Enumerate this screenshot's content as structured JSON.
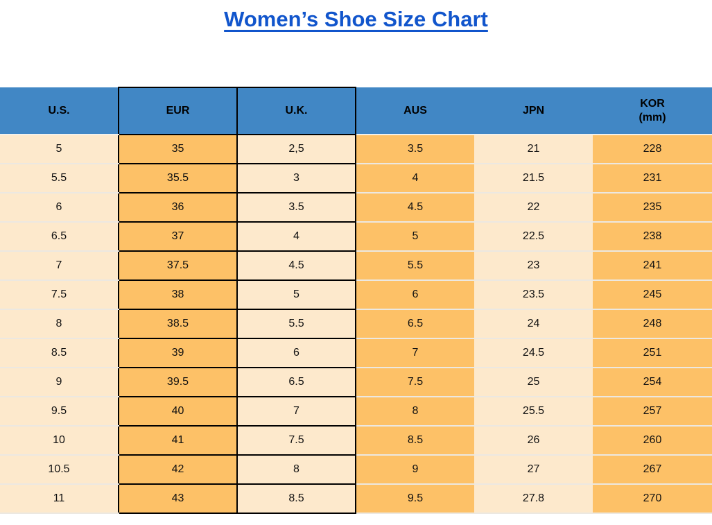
{
  "page": {
    "title": "Women’s Shoe Size Chart"
  },
  "colors": {
    "title_blue": "#1155cc",
    "header_bg": "#4187c5",
    "cell_orange": "#fdc167",
    "cell_cream": "#fde9cc",
    "box_border": "#000000",
    "row_line": "#ece8e1"
  },
  "table": {
    "headers": [
      {
        "label": "U.S."
      },
      {
        "label": "EUR"
      },
      {
        "label": "U.K."
      },
      {
        "label": "AUS"
      },
      {
        "label": "JPN"
      },
      {
        "label": "KOR",
        "sub": "(mm)"
      }
    ]
  },
  "chart_data": {
    "type": "table",
    "title": "Women’s Shoe Size Chart",
    "columns": [
      "U.S.",
      "EUR",
      "U.K.",
      "AUS",
      "JPN",
      "KOR (mm)"
    ],
    "rows": [
      [
        "5",
        "35",
        "2,5",
        "3.5",
        "21",
        "228"
      ],
      [
        "5.5",
        "35.5",
        "3",
        "4",
        "21.5",
        "231"
      ],
      [
        "6",
        "36",
        "3.5",
        "4.5",
        "22",
        "235"
      ],
      [
        "6.5",
        "37",
        "4",
        "5",
        "22.5",
        "238"
      ],
      [
        "7",
        "37.5",
        "4.5",
        "5.5",
        "23",
        "241"
      ],
      [
        "7.5",
        "38",
        "5",
        "6",
        "23.5",
        "245"
      ],
      [
        "8",
        "38.5",
        "5.5",
        "6.5",
        "24",
        "248"
      ],
      [
        "8.5",
        "39",
        "6",
        "7",
        "24.5",
        "251"
      ],
      [
        "9",
        "39.5",
        "6.5",
        "7.5",
        "25",
        "254"
      ],
      [
        "9.5",
        "40",
        "7",
        "8",
        "25.5",
        "257"
      ],
      [
        "10",
        "41",
        "7.5",
        "8.5",
        "26",
        "260"
      ],
      [
        "10.5",
        "42",
        "8",
        "9",
        "27",
        "267"
      ],
      [
        "11",
        "43",
        "8.5",
        "9.5",
        "27.8",
        "270"
      ]
    ]
  }
}
